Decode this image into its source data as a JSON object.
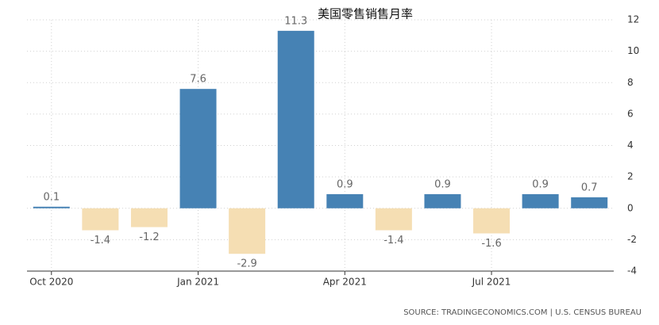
{
  "chart_data": {
    "type": "bar",
    "title": "美国零售销售月率",
    "categories": [
      "Oct 2020",
      null,
      null,
      "Jan 2021",
      null,
      null,
      "Apr 2021",
      null,
      null,
      "Jul 2021",
      null,
      null
    ],
    "values": [
      0.1,
      -1.4,
      -1.2,
      7.6,
      -2.9,
      11.3,
      0.9,
      -1.4,
      0.9,
      -1.6,
      0.9,
      0.7
    ],
    "positive_color": "#4682b4",
    "negative_color": "#f5deb3",
    "ylim": [
      -4,
      12
    ],
    "yticks": [
      -4,
      -2,
      0,
      2,
      4,
      6,
      8,
      10,
      12
    ],
    "grid": true,
    "source": "SOURCE: TRADINGECONOMICS.COM | U.S. CENSUS BUREAU"
  }
}
